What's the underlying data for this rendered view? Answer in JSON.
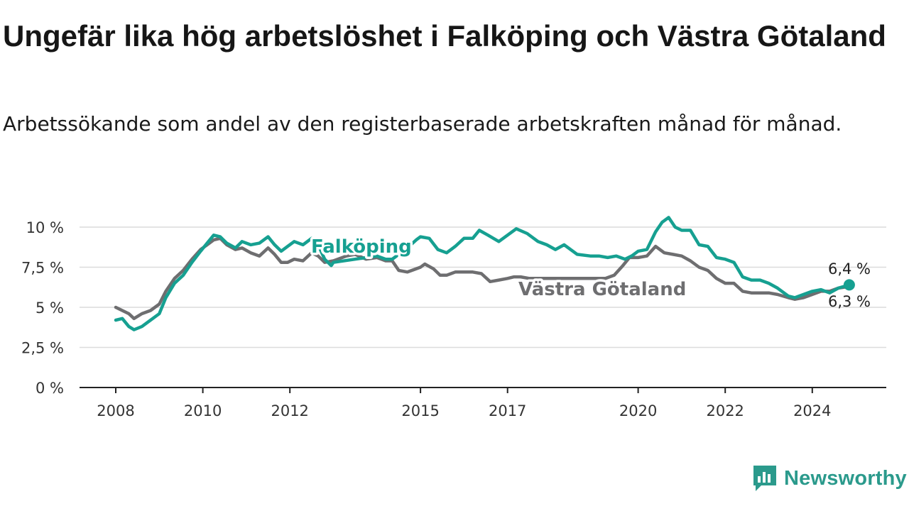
{
  "header": {
    "title": "Ungefär lika hög arbetslöshet i Falköping och Västra Götaland",
    "subtitle": "Arbetssökande som andel av den registerbaserade arbetskraften månad för månad."
  },
  "brand": {
    "name": "Newsworthy",
    "icon": "newsworthy-logo-icon",
    "color": "#2b9a8c"
  },
  "chart_data": {
    "type": "line",
    "xlim": [
      2008.0,
      2026.0
    ],
    "ylim": [
      0,
      10
    ],
    "y_ticks": [
      0,
      2.5,
      5,
      7.5,
      10
    ],
    "y_tick_labels": [
      "0 %",
      "2,5 %",
      "5 %",
      "7,5 %",
      "10 %"
    ],
    "x_ticks": [
      2008,
      2010,
      2012,
      2015,
      2017,
      2020,
      2022,
      2024
    ],
    "x_tick_labels": [
      "2008",
      "2010",
      "2012",
      "2015",
      "2017",
      "2020",
      "2022",
      "2024"
    ],
    "grid": "horizontal",
    "series": [
      {
        "name": "Västra Götaland",
        "color": "#6e6e70",
        "end_label": "6,3 %",
        "points": [
          [
            2008.0,
            5.0
          ],
          [
            2008.15,
            4.8
          ],
          [
            2008.3,
            4.6
          ],
          [
            2008.42,
            4.3
          ],
          [
            2008.6,
            4.6
          ],
          [
            2008.8,
            4.8
          ],
          [
            2009.0,
            5.2
          ],
          [
            2009.15,
            6.0
          ],
          [
            2009.35,
            6.8
          ],
          [
            2009.55,
            7.3
          ],
          [
            2009.75,
            8.0
          ],
          [
            2009.95,
            8.6
          ],
          [
            2010.1,
            8.9
          ],
          [
            2010.25,
            9.2
          ],
          [
            2010.4,
            9.3
          ],
          [
            2010.55,
            8.9
          ],
          [
            2010.75,
            8.6
          ],
          [
            2010.9,
            8.7
          ],
          [
            2011.1,
            8.4
          ],
          [
            2011.3,
            8.2
          ],
          [
            2011.5,
            8.7
          ],
          [
            2011.65,
            8.3
          ],
          [
            2011.8,
            7.8
          ],
          [
            2011.95,
            7.8
          ],
          [
            2012.1,
            8.0
          ],
          [
            2012.3,
            7.9
          ],
          [
            2012.5,
            8.4
          ],
          [
            2012.65,
            8.2
          ],
          [
            2012.8,
            7.8
          ],
          [
            2013.0,
            7.9
          ],
          [
            2013.3,
            8.2
          ],
          [
            2013.5,
            8.3
          ],
          [
            2013.75,
            8.0
          ],
          [
            2014.0,
            8.1
          ],
          [
            2014.2,
            7.9
          ],
          [
            2014.35,
            7.9
          ],
          [
            2014.5,
            7.3
          ],
          [
            2014.7,
            7.2
          ],
          [
            2014.9,
            7.4
          ],
          [
            2015.0,
            7.5
          ],
          [
            2015.1,
            7.7
          ],
          [
            2015.3,
            7.4
          ],
          [
            2015.45,
            7.0
          ],
          [
            2015.6,
            7.0
          ],
          [
            2015.8,
            7.2
          ],
          [
            2016.0,
            7.2
          ],
          [
            2016.2,
            7.2
          ],
          [
            2016.4,
            7.1
          ],
          [
            2016.6,
            6.6
          ],
          [
            2016.8,
            6.7
          ],
          [
            2017.0,
            6.8
          ],
          [
            2017.15,
            6.9
          ],
          [
            2017.3,
            6.9
          ],
          [
            2017.5,
            6.8
          ],
          [
            2019.25,
            6.8
          ],
          [
            2019.45,
            7.0
          ],
          [
            2019.65,
            7.6
          ],
          [
            2019.8,
            8.1
          ],
          [
            2020.0,
            8.1
          ],
          [
            2020.2,
            8.2
          ],
          [
            2020.4,
            8.8
          ],
          [
            2020.6,
            8.4
          ],
          [
            2020.8,
            8.3
          ],
          [
            2021.0,
            8.2
          ],
          [
            2021.2,
            7.9
          ],
          [
            2021.4,
            7.5
          ],
          [
            2021.6,
            7.3
          ],
          [
            2021.8,
            6.8
          ],
          [
            2022.0,
            6.5
          ],
          [
            2022.2,
            6.5
          ],
          [
            2022.4,
            6.0
          ],
          [
            2022.6,
            5.9
          ],
          [
            2022.8,
            5.9
          ],
          [
            2023.0,
            5.9
          ],
          [
            2023.2,
            5.8
          ],
          [
            2023.45,
            5.6
          ],
          [
            2023.6,
            5.5
          ],
          [
            2023.8,
            5.6
          ],
          [
            2024.0,
            5.8
          ],
          [
            2024.2,
            6.0
          ],
          [
            2024.4,
            6.0
          ],
          [
            2024.6,
            6.2
          ],
          [
            2024.85,
            6.3
          ]
        ]
      },
      {
        "name": "Falköping",
        "color": "#16a091",
        "end_label": "6,4 %",
        "points": [
          [
            2008.0,
            4.2
          ],
          [
            2008.15,
            4.3
          ],
          [
            2008.3,
            3.8
          ],
          [
            2008.42,
            3.6
          ],
          [
            2008.6,
            3.8
          ],
          [
            2008.8,
            4.2
          ],
          [
            2009.0,
            4.6
          ],
          [
            2009.15,
            5.6
          ],
          [
            2009.35,
            6.5
          ],
          [
            2009.55,
            7.0
          ],
          [
            2009.75,
            7.8
          ],
          [
            2009.95,
            8.5
          ],
          [
            2010.1,
            9.0
          ],
          [
            2010.25,
            9.5
          ],
          [
            2010.4,
            9.4
          ],
          [
            2010.55,
            9.0
          ],
          [
            2010.75,
            8.7
          ],
          [
            2010.9,
            9.1
          ],
          [
            2011.1,
            8.9
          ],
          [
            2011.3,
            9.0
          ],
          [
            2011.5,
            9.4
          ],
          [
            2011.65,
            8.9
          ],
          [
            2011.8,
            8.5
          ],
          [
            2011.95,
            8.8
          ],
          [
            2012.1,
            9.1
          ],
          [
            2012.3,
            8.9
          ],
          [
            2012.5,
            9.3
          ],
          [
            2012.65,
            8.9
          ],
          [
            2012.8,
            8.0
          ],
          [
            2012.95,
            7.6
          ],
          [
            2013.0,
            7.8
          ],
          [
            2014.0,
            8.2
          ],
          [
            2014.2,
            8.0
          ],
          [
            2014.35,
            8.0
          ],
          [
            2014.5,
            8.3
          ],
          [
            2014.7,
            8.7
          ],
          [
            2014.9,
            9.2
          ],
          [
            2015.0,
            9.4
          ],
          [
            2015.2,
            9.3
          ],
          [
            2015.4,
            8.6
          ],
          [
            2015.6,
            8.4
          ],
          [
            2015.8,
            8.8
          ],
          [
            2016.0,
            9.3
          ],
          [
            2016.2,
            9.3
          ],
          [
            2016.35,
            9.8
          ],
          [
            2016.55,
            9.5
          ],
          [
            2016.8,
            9.1
          ],
          [
            2017.0,
            9.5
          ],
          [
            2017.2,
            9.9
          ],
          [
            2017.45,
            9.6
          ],
          [
            2017.7,
            9.1
          ],
          [
            2017.9,
            8.9
          ],
          [
            2018.1,
            8.6
          ],
          [
            2018.3,
            8.9
          ],
          [
            2018.6,
            8.3
          ],
          [
            2018.9,
            8.2
          ],
          [
            2019.1,
            8.2
          ],
          [
            2019.3,
            8.1
          ],
          [
            2019.5,
            8.2
          ],
          [
            2019.7,
            8.0
          ],
          [
            2019.85,
            8.2
          ],
          [
            2020.0,
            8.5
          ],
          [
            2020.2,
            8.6
          ],
          [
            2020.4,
            9.7
          ],
          [
            2020.55,
            10.3
          ],
          [
            2020.7,
            10.6
          ],
          [
            2020.85,
            10.0
          ],
          [
            2021.0,
            9.8
          ],
          [
            2021.2,
            9.8
          ],
          [
            2021.4,
            8.9
          ],
          [
            2021.6,
            8.8
          ],
          [
            2021.8,
            8.1
          ],
          [
            2022.0,
            8.0
          ],
          [
            2022.2,
            7.8
          ],
          [
            2022.4,
            6.9
          ],
          [
            2022.6,
            6.7
          ],
          [
            2022.8,
            6.7
          ],
          [
            2023.0,
            6.5
          ],
          [
            2023.2,
            6.2
          ],
          [
            2023.45,
            5.7
          ],
          [
            2023.6,
            5.6
          ],
          [
            2023.8,
            5.8
          ],
          [
            2024.0,
            6.0
          ],
          [
            2024.2,
            6.1
          ],
          [
            2024.4,
            5.9
          ],
          [
            2024.6,
            6.2
          ],
          [
            2024.85,
            6.4
          ]
        ]
      }
    ]
  }
}
